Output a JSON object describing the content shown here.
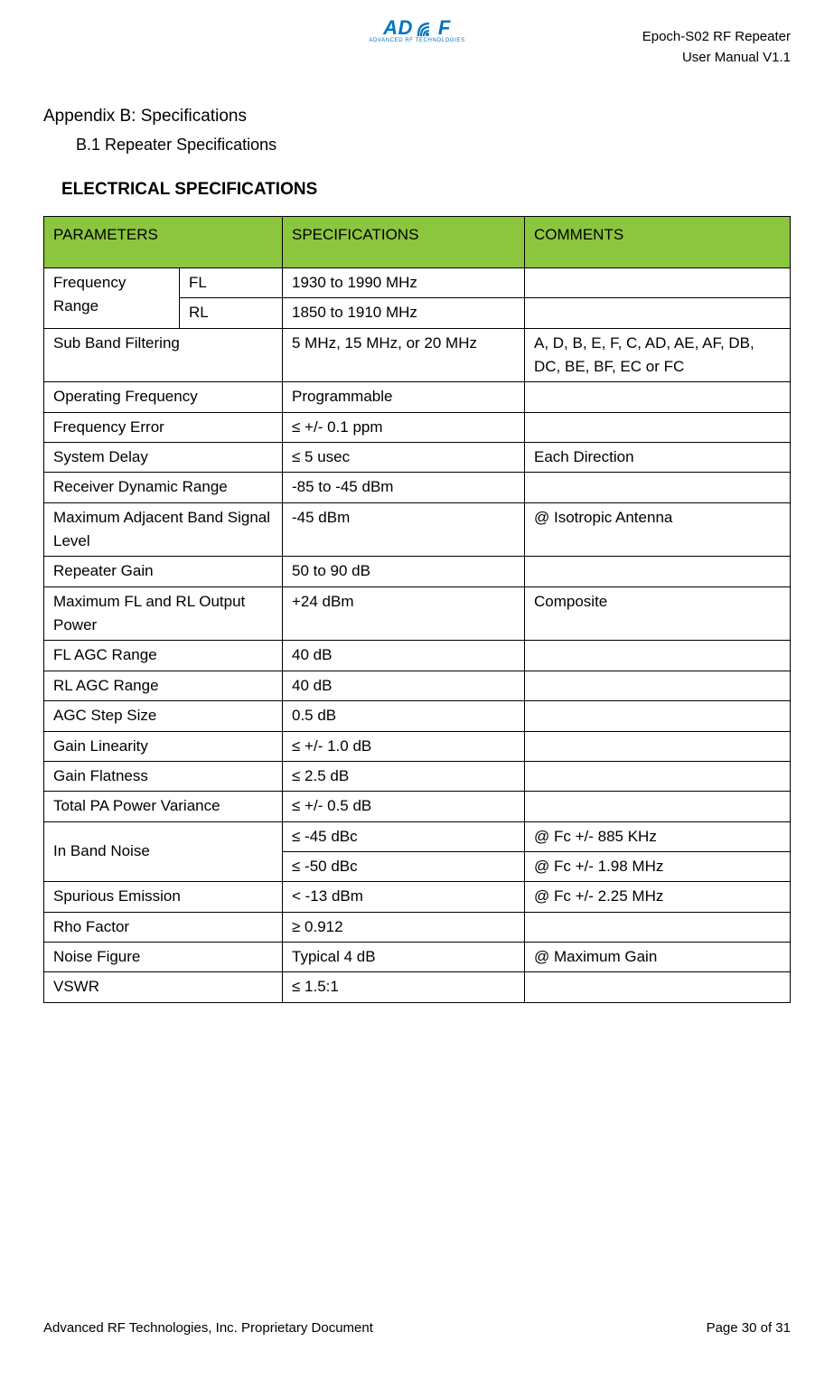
{
  "header": {
    "logo_text": "AD",
    "logo_text2": "F",
    "logo_subtext": "ADVANCED RF TECHNOLOGIES",
    "product_line": "Epoch-S02 RF Repeater",
    "manual_line": "User Manual V1.1"
  },
  "titles": {
    "appendix": "Appendix B: Specifications",
    "subsection": "B.1 Repeater Specifications",
    "section_heading": "ELECTRICAL SPECIFICATIONS"
  },
  "table": {
    "header_bg": "#8cc63f",
    "columns": [
      "PARAMETERS",
      "SPECIFICATIONS",
      "COMMENTS"
    ],
    "freq_range_label": "Frequency Range",
    "freq_fl_label": "FL",
    "freq_fl_spec": "1930 to 1990 MHz",
    "freq_rl_label": "RL",
    "freq_rl_spec": "1850 to 1910 MHz",
    "rows": [
      {
        "p": "Sub Band Filtering",
        "s": "5 MHz, 15 MHz, or 20 MHz",
        "c": "A, D, B, E, F, C, AD, AE, AF, DB, DC, BE, BF, EC or FC"
      },
      {
        "p": "Operating Frequency",
        "s": "Programmable",
        "c": ""
      },
      {
        "p": "Frequency Error",
        "s": "≤ +/- 0.1 ppm",
        "c": ""
      },
      {
        "p": "System Delay",
        "s": "≤ 5 usec",
        "c": "Each Direction"
      },
      {
        "p": "Receiver Dynamic Range",
        "s": "-85 to -45 dBm",
        "c": ""
      },
      {
        "p": "Maximum Adjacent Band Signal Level",
        "s": "-45 dBm",
        "c": "@ Isotropic Antenna"
      },
      {
        "p": "Repeater Gain",
        "s": "50 to 90 dB",
        "c": ""
      },
      {
        "p": "Maximum FL and RL Output Power",
        "s": "+24 dBm",
        "c": "Composite"
      },
      {
        "p": "FL AGC Range",
        "s": "40 dB",
        "c": ""
      },
      {
        "p": "RL AGC Range",
        "s": "40 dB",
        "c": ""
      },
      {
        "p": "AGC Step Size",
        "s": "0.5 dB",
        "c": ""
      },
      {
        "p": "Gain Linearity",
        "s": "≤ +/- 1.0 dB",
        "c": ""
      },
      {
        "p": "Gain Flatness",
        "s": "≤ 2.5 dB",
        "c": ""
      },
      {
        "p": "Total PA Power Variance",
        "s": "≤ +/- 0.5 dB",
        "c": ""
      }
    ],
    "inband_label": "In Band Noise",
    "inband_rows": [
      {
        "s": "≤ -45 dBc",
        "c": "@ Fc +/- 885 KHz"
      },
      {
        "s": "≤ -50 dBc",
        "c": "@ Fc +/- 1.98 MHz"
      }
    ],
    "rows_after": [
      {
        "p": "Spurious Emission",
        "s": "< -13 dBm",
        "c": "@ Fc +/- 2.25 MHz"
      },
      {
        "p": "Rho Factor",
        "s": "≥ 0.912",
        "c": ""
      },
      {
        "p": "Noise Figure",
        "s": "Typical 4 dB",
        "c": "@ Maximum Gain"
      },
      {
        "p": "VSWR",
        "s": "≤ 1.5:1",
        "c": ""
      }
    ]
  },
  "footer": {
    "left": "Advanced RF Technologies, Inc. Proprietary Document",
    "right": "Page 30 of 31"
  }
}
